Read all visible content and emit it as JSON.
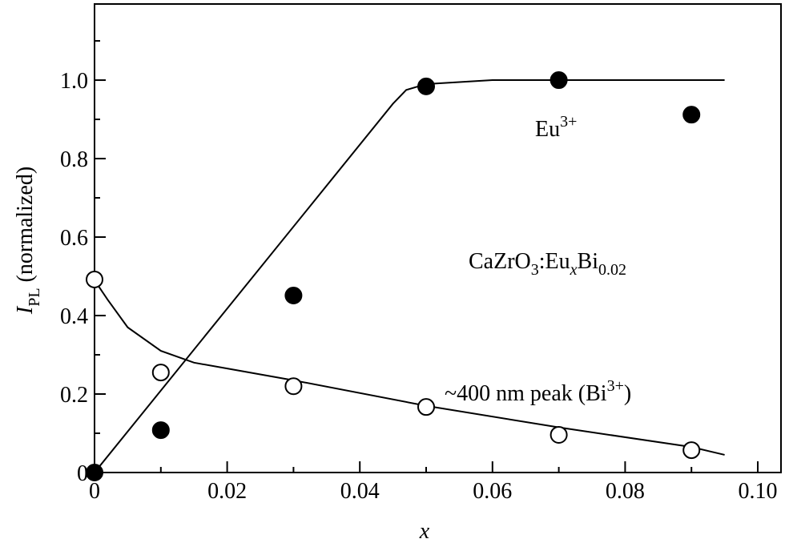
{
  "chart_data": {
    "type": "scatter",
    "x_label": "x",
    "y_label": [
      "I",
      "PL",
      " (normalized)"
    ],
    "xlim": [
      0,
      0.1035
    ],
    "ylim": [
      0,
      1.194
    ],
    "xticks": [
      0,
      0.02,
      0.04,
      0.06,
      0.08,
      {
        "value": 0.1,
        "label": "0.10"
      }
    ],
    "yticks": [
      0,
      0.2,
      0.4,
      0.6,
      0.8,
      {
        "value": 1,
        "label": "1.0"
      }
    ],
    "xminorticks": [
      0.01,
      0.03,
      0.05,
      0.07,
      0.09
    ],
    "yminorticks": [
      0.1,
      0.3,
      0.5,
      0.7,
      0.9,
      1.1
    ],
    "series": [
      {
        "marker": "filled",
        "color": "#000000",
        "x": [
          0,
          0.01,
          0.03,
          0.05,
          0.07,
          0.09
        ],
        "values": [
          0,
          0.108,
          0.451,
          0.984,
          1.0,
          0.912
        ]
      },
      {
        "marker": "open",
        "color": "#000000",
        "x": [
          0,
          0.01,
          0.03,
          0.05,
          0.07,
          0.09
        ],
        "values": [
          0.492,
          0.255,
          0.22,
          0.167,
          0.096,
          0.057
        ]
      }
    ],
    "fits": [
      {
        "x": [
          0,
          0.045,
          0.047,
          0.05,
          0.06,
          0.095
        ],
        "values": [
          0,
          0.94,
          0.975,
          0.99,
          1.0,
          1.0
        ]
      },
      {
        "x": [
          0,
          0.002,
          0.005,
          0.01,
          0.015,
          0.02,
          0.03,
          0.05,
          0.07,
          0.09,
          0.095
        ],
        "values": [
          0.49,
          0.44,
          0.37,
          0.31,
          0.28,
          0.265,
          0.235,
          0.17,
          0.115,
          0.065,
          0.045
        ]
      }
    ],
    "annotations": [
      [
        "Eu",
        "3+"
      ],
      [
        "CaZrO",
        "3",
        ":Eu",
        "x",
        "Bi",
        "0.02"
      ],
      [
        "~400 nm peak (Bi",
        "3+",
        ")"
      ]
    ]
  }
}
